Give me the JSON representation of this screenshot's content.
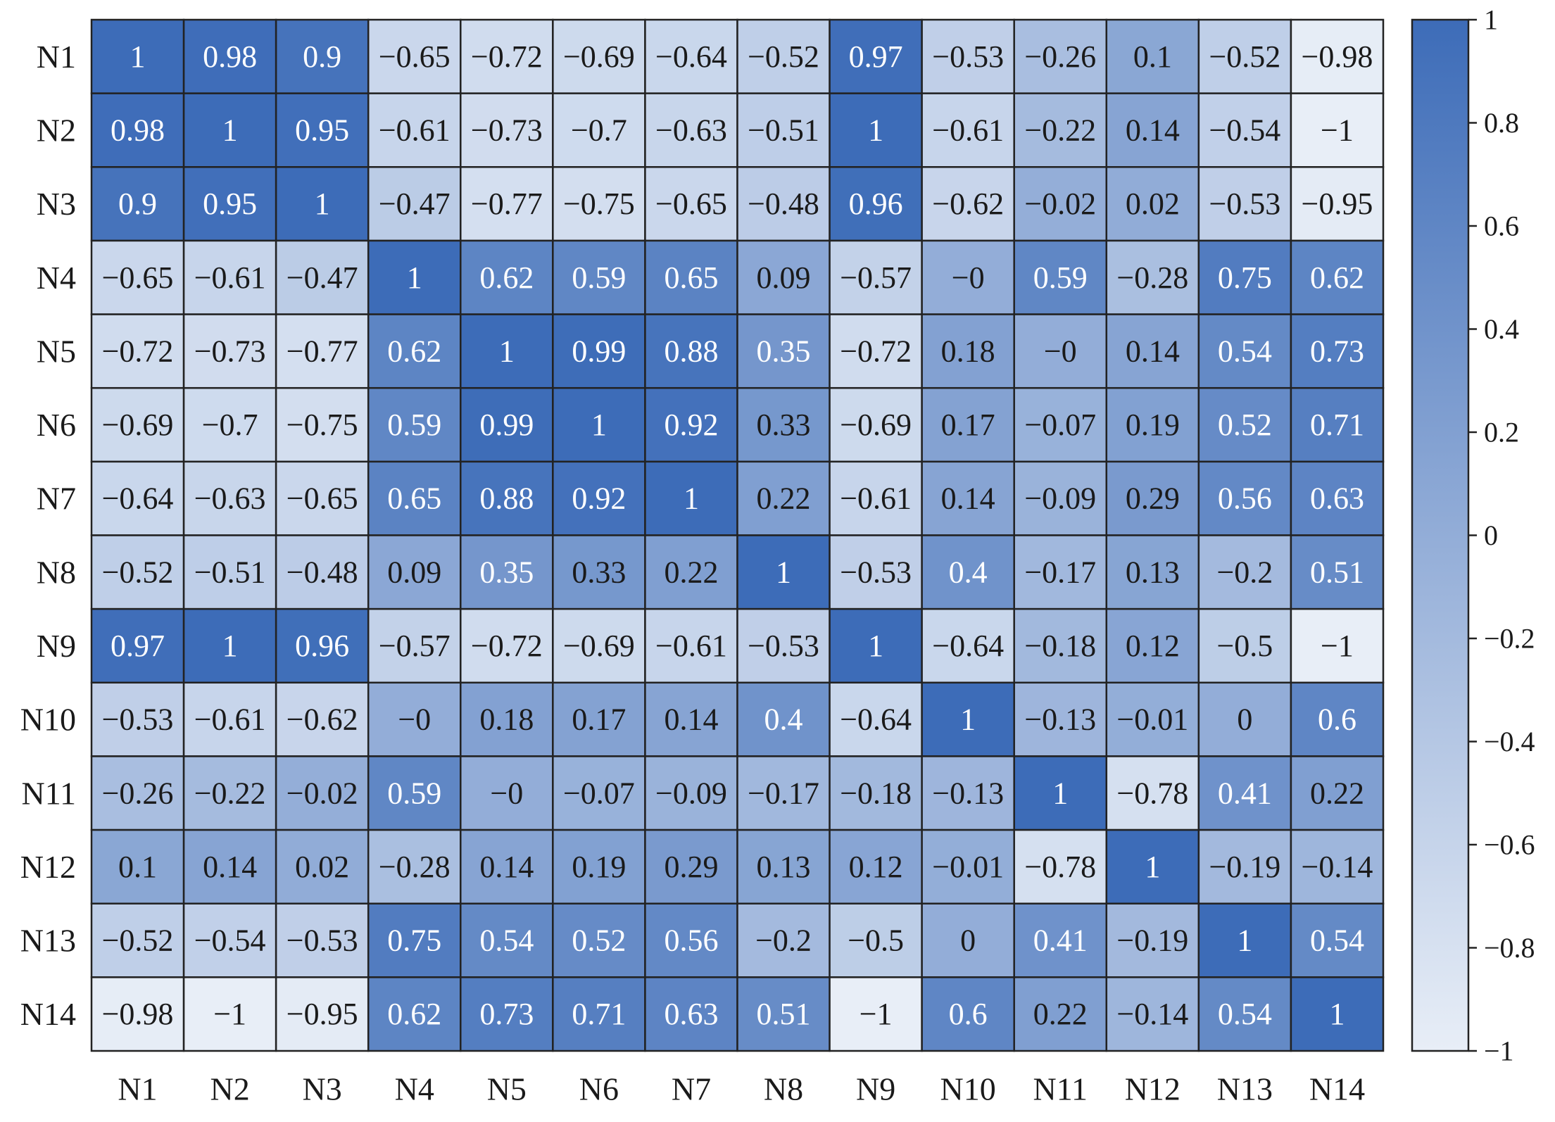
{
  "chart_data": {
    "type": "heatmap",
    "title": "",
    "xlabel": "",
    "ylabel": "",
    "rows": [
      "N1",
      "N2",
      "N3",
      "N4",
      "N5",
      "N6",
      "N7",
      "N8",
      "N9",
      "N10",
      "N11",
      "N12",
      "N13",
      "N14"
    ],
    "columns": [
      "N1",
      "N2",
      "N3",
      "N4",
      "N5",
      "N6",
      "N7",
      "N8",
      "N9",
      "N10",
      "N11",
      "N12",
      "N13",
      "N14"
    ],
    "values": [
      [
        "1",
        "0.98",
        "0.9",
        "−0.65",
        "−0.72",
        "−0.69",
        "−0.64",
        "−0.52",
        "0.97",
        "−0.53",
        "−0.26",
        "0.1",
        "−0.52",
        "−0.98"
      ],
      [
        "0.98",
        "1",
        "0.95",
        "−0.61",
        "−0.73",
        "−0.7",
        "−0.63",
        "−0.51",
        "1",
        "−0.61",
        "−0.22",
        "0.14",
        "−0.54",
        "−1"
      ],
      [
        "0.9",
        "0.95",
        "1",
        "−0.47",
        "−0.77",
        "−0.75",
        "−0.65",
        "−0.48",
        "0.96",
        "−0.62",
        "−0.02",
        "0.02",
        "−0.53",
        "−0.95"
      ],
      [
        "−0.65",
        "−0.61",
        "−0.47",
        "1",
        "0.62",
        "0.59",
        "0.65",
        "0.09",
        "−0.57",
        "−0",
        "0.59",
        "−0.28",
        "0.75",
        "0.62"
      ],
      [
        "−0.72",
        "−0.73",
        "−0.77",
        "0.62",
        "1",
        "0.99",
        "0.88",
        "0.35",
        "−0.72",
        "0.18",
        "−0",
        "0.14",
        "0.54",
        "0.73"
      ],
      [
        "−0.69",
        "−0.7",
        "−0.75",
        "0.59",
        "0.99",
        "1",
        "0.92",
        "0.33",
        "−0.69",
        "0.17",
        "−0.07",
        "0.19",
        "0.52",
        "0.71"
      ],
      [
        "−0.64",
        "−0.63",
        "−0.65",
        "0.65",
        "0.88",
        "0.92",
        "1",
        "0.22",
        "−0.61",
        "0.14",
        "−0.09",
        "0.29",
        "0.56",
        "0.63"
      ],
      [
        "−0.52",
        "−0.51",
        "−0.48",
        "0.09",
        "0.35",
        "0.33",
        "0.22",
        "1",
        "−0.53",
        "0.4",
        "−0.17",
        "0.13",
        "−0.2",
        "0.51"
      ],
      [
        "0.97",
        "1",
        "0.96",
        "−0.57",
        "−0.72",
        "−0.69",
        "−0.61",
        "−0.53",
        "1",
        "−0.64",
        "−0.18",
        "0.12",
        "−0.5",
        "−1"
      ],
      [
        "−0.53",
        "−0.61",
        "−0.62",
        "−0",
        "0.18",
        "0.17",
        "0.14",
        "0.4",
        "−0.64",
        "1",
        "−0.13",
        "−0.01",
        "0",
        "0.6"
      ],
      [
        "−0.26",
        "−0.22",
        "−0.02",
        "0.59",
        "−0",
        "−0.07",
        "−0.09",
        "−0.17",
        "−0.18",
        "−0.13",
        "1",
        "−0.78",
        "0.41",
        "0.22"
      ],
      [
        "0.1",
        "0.14",
        "0.02",
        "−0.28",
        "0.14",
        "0.19",
        "0.29",
        "0.13",
        "0.12",
        "−0.01",
        "−0.78",
        "1",
        "−0.19",
        "−0.14"
      ],
      [
        "−0.52",
        "−0.54",
        "−0.53",
        "0.75",
        "0.54",
        "0.52",
        "0.56",
        "−0.2",
        "−0.5",
        "0",
        "0.41",
        "−0.19",
        "1",
        "0.54"
      ],
      [
        "−0.98",
        "−1",
        "−0.95",
        "0.62",
        "0.73",
        "0.71",
        "0.63",
        "0.51",
        "−1",
        "0.6",
        "0.22",
        "−0.14",
        "0.54",
        "1"
      ]
    ],
    "colorbar": {
      "range": [
        -1,
        1
      ],
      "ticks": [
        "1",
        "0.8",
        "0.6",
        "0.4",
        "0.2",
        "0",
        "−0.2",
        "−0.4",
        "−0.6",
        "−0.8",
        "−1"
      ],
      "low_color": "#e8eef7",
      "high_color": "#3d6cb8"
    },
    "legend": "right",
    "grid": true,
    "colors": {
      "cell_border": "#222222",
      "text_on_dark": "#ffffff",
      "text_on_light": "#1a1a1a",
      "axis_text": "#1a1a1a"
    }
  }
}
